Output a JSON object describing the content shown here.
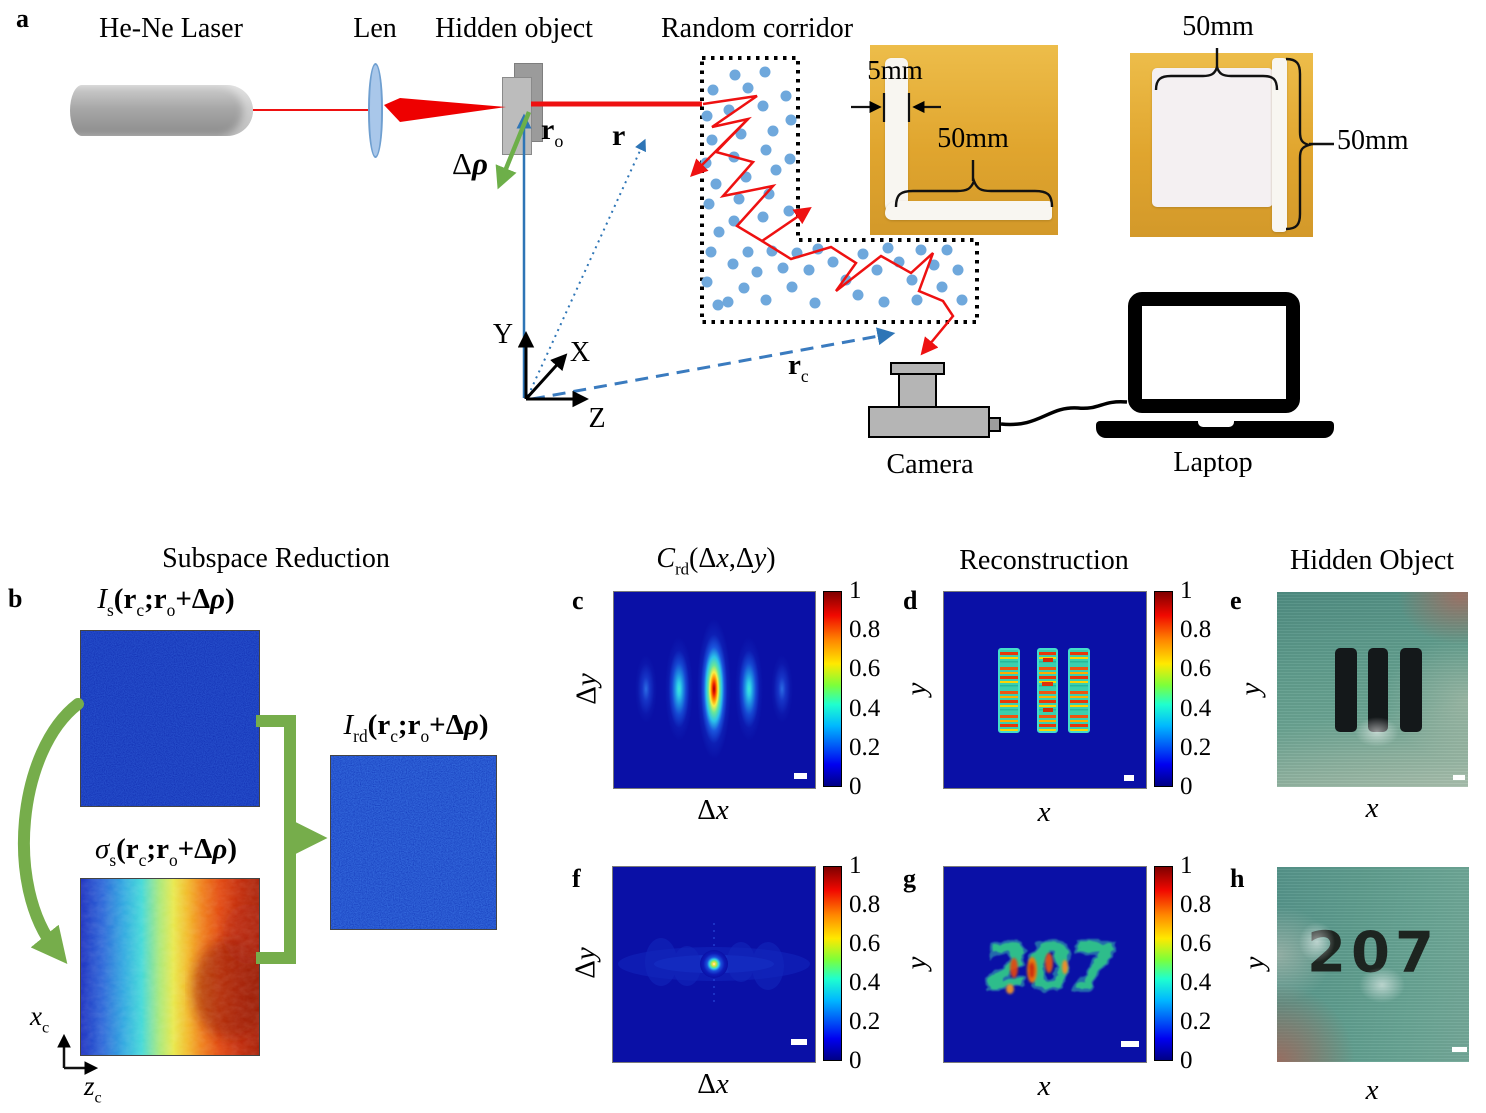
{
  "figure": {
    "panel_a": {
      "label": "a",
      "laser_label": "He-Ne Laser",
      "lens_label": "Len",
      "object_label": "Hidden object",
      "corridor_label": "Random corridor",
      "camera_label": "Camera",
      "laptop_label": "Laptop",
      "axis_y": "Y",
      "axis_x": "X",
      "axis_z": "Z",
      "dim_corridor_width": "5mm",
      "dim_corridor_length": "50mm",
      "dim_plate_top": "50mm",
      "dim_plate_side": "50mm",
      "vec_delta_rho": [
        {
          "t": "Δ",
          "k": "n"
        },
        {
          "t": "ρ",
          "k": "bi"
        }
      ],
      "vec_r_o": [
        {
          "t": "r",
          "k": "b"
        },
        {
          "t": "o",
          "k": "sub"
        }
      ],
      "vec_r": [
        {
          "t": "r",
          "k": "b"
        }
      ],
      "vec_r_c": [
        {
          "t": "r",
          "k": "b"
        },
        {
          "t": "c",
          "k": "sub"
        }
      ]
    },
    "panel_b": {
      "label": "b",
      "title": "Subspace Reduction",
      "formula_i_s": [
        {
          "t": "I",
          "k": "i"
        },
        {
          "t": "s",
          "k": "sub"
        },
        {
          "t": "(",
          "k": "b"
        },
        {
          "t": "r",
          "k": "b"
        },
        {
          "t": "c",
          "k": "sub"
        },
        {
          "t": ";",
          "k": "b"
        },
        {
          "t": "r",
          "k": "b"
        },
        {
          "t": "o",
          "k": "sub"
        },
        {
          "t": "+",
          "k": "b"
        },
        {
          "t": "Δ",
          "k": "b"
        },
        {
          "t": "ρ",
          "k": "bi"
        },
        {
          "t": ")",
          "k": "b"
        }
      ],
      "formula_sigma_s": [
        {
          "t": "σ",
          "k": "i"
        },
        {
          "t": "s",
          "k": "sub"
        },
        {
          "t": "(",
          "k": "b"
        },
        {
          "t": "r",
          "k": "b"
        },
        {
          "t": "c",
          "k": "sub"
        },
        {
          "t": ";",
          "k": "b"
        },
        {
          "t": "r",
          "k": "b"
        },
        {
          "t": "o",
          "k": "sub"
        },
        {
          "t": "+",
          "k": "b"
        },
        {
          "t": "Δ",
          "k": "b"
        },
        {
          "t": "ρ",
          "k": "bi"
        },
        {
          "t": ")",
          "k": "b"
        }
      ],
      "formula_i_rd": [
        {
          "t": "I",
          "k": "i"
        },
        {
          "t": "rd",
          "k": "sub"
        },
        {
          "t": "(",
          "k": "b"
        },
        {
          "t": "r",
          "k": "b"
        },
        {
          "t": "c",
          "k": "sub"
        },
        {
          "t": ";",
          "k": "b"
        },
        {
          "t": "r",
          "k": "b"
        },
        {
          "t": "o",
          "k": "sub"
        },
        {
          "t": "+",
          "k": "b"
        },
        {
          "t": "Δ",
          "k": "b"
        },
        {
          "t": "ρ",
          "k": "bi"
        },
        {
          "t": ")",
          "k": "b"
        }
      ],
      "axis_x_c": [
        {
          "t": "x",
          "k": "i"
        },
        {
          "t": "c",
          "k": "sub"
        }
      ],
      "axis_z_c": [
        {
          "t": "z",
          "k": "i"
        },
        {
          "t": "c",
          "k": "sub"
        }
      ]
    },
    "results": {
      "correlation_title": [
        {
          "t": "C",
          "k": "i"
        },
        {
          "t": "rd",
          "k": "sub"
        },
        {
          "t": "(",
          "k": "n"
        },
        {
          "t": "Δ",
          "k": "n"
        },
        {
          "t": "x",
          "k": "i"
        },
        {
          "t": ",",
          "k": "n"
        },
        {
          "t": "Δ",
          "k": "n"
        },
        {
          "t": "y",
          "k": "i"
        },
        {
          "t": ")",
          "k": "n"
        }
      ],
      "reconstruction_title": "Reconstruction",
      "hidden_object_title": "Hidden Object",
      "panel_c_label": "c",
      "panel_d_label": "d",
      "panel_e_label": "e",
      "panel_f_label": "f",
      "panel_g_label": "g",
      "panel_h_label": "h",
      "axis_dx": [
        {
          "t": "Δ",
          "k": "n"
        },
        {
          "t": "x",
          "k": "i"
        }
      ],
      "axis_dy": [
        {
          "t": "Δ",
          "k": "n"
        },
        {
          "t": "y",
          "k": "i"
        }
      ],
      "axis_x": [
        {
          "t": "x",
          "k": "i"
        }
      ],
      "axis_y": [
        {
          "t": "y",
          "k": "i"
        }
      ],
      "object_text": "207",
      "colorbar_ticks": [
        "1",
        "0.8",
        "0.6",
        "0.4",
        "0.2",
        "0"
      ],
      "colorbar_range": [
        0,
        1
      ]
    },
    "colors": {
      "jet_background": "#0a10a6",
      "arrow_green": "#76ad4b",
      "beam_red": "#ee1111",
      "vector_blue": "#2e75b6",
      "dot_blue": "#6fa8dc",
      "photo_yellow": "#e3a92f"
    }
  }
}
